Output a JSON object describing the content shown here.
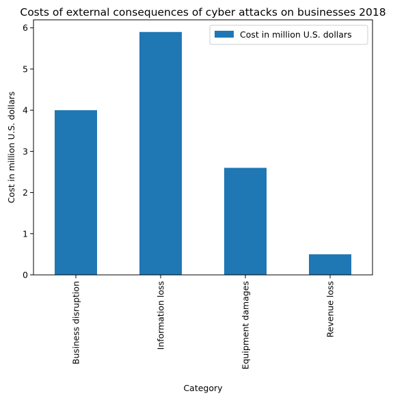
{
  "chart_data": {
    "type": "bar",
    "title": "Costs of external consequences of cyber attacks on businesses 2018",
    "xlabel": "Category",
    "ylabel": "Cost in million U.S. dollars",
    "categories": [
      "Business disruption",
      "Information loss",
      "Equipment damages",
      "Revenue loss"
    ],
    "series": [
      {
        "name": "Cost in million U.S. dollars",
        "values": [
          4.0,
          5.9,
          2.6,
          0.5
        ]
      }
    ],
    "ylim": [
      0,
      6.195
    ],
    "yticks": [
      0,
      1,
      2,
      3,
      4,
      5,
      6
    ],
    "grid": false,
    "legend_position": "top-right",
    "colors": {
      "bar": "#1f77b4"
    }
  }
}
